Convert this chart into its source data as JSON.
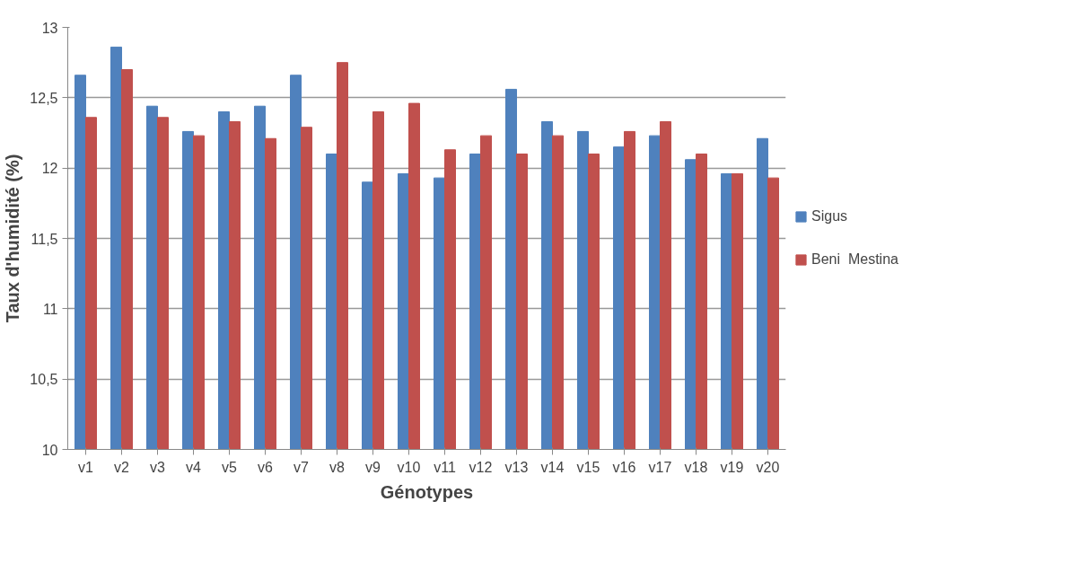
{
  "chart_data": {
    "type": "bar",
    "xlabel": "Génotypes",
    "ylabel": "Taux d'humidité (%)",
    "categories": [
      "v1",
      "v2",
      "v3",
      "v4",
      "v5",
      "v6",
      "v7",
      "v8",
      "v9",
      "v10",
      "v11",
      "v12",
      "v13",
      "v14",
      "v15",
      "v16",
      "v17",
      "v18",
      "v19",
      "v20"
    ],
    "series": [
      {
        "name": "Sigus",
        "color": "#4f81bd",
        "values": [
          12.66,
          12.86,
          12.44,
          12.26,
          12.4,
          12.44,
          12.66,
          12.1,
          11.9,
          11.96,
          11.93,
          12.1,
          12.56,
          12.33,
          12.26,
          12.15,
          12.23,
          12.06,
          11.96,
          12.21
        ]
      },
      {
        "name": "Beni  Mestina",
        "color": "#c0504d",
        "values": [
          12.36,
          12.7,
          12.36,
          12.23,
          12.33,
          12.21,
          12.29,
          12.75,
          12.4,
          12.46,
          12.13,
          12.23,
          12.1,
          12.23,
          12.1,
          12.26,
          12.33,
          12.1,
          11.96,
          11.93
        ]
      }
    ],
    "ylim": [
      10,
      13
    ],
    "yticks": [
      {
        "value": 10,
        "label": "10"
      },
      {
        "value": 10.5,
        "label": "10,5"
      },
      {
        "value": 11,
        "label": "11"
      },
      {
        "value": 11.5,
        "label": "11,5"
      },
      {
        "value": 12,
        "label": "12"
      },
      {
        "value": 12.5,
        "label": "12,5"
      },
      {
        "value": 13,
        "label": "13"
      }
    ],
    "grid": "y",
    "legend": "right"
  }
}
